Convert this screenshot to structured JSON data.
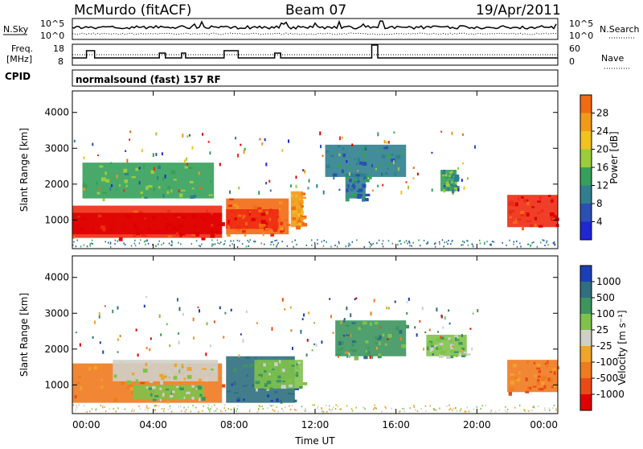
{
  "header": {
    "station": "McMurdo (fitACF)",
    "beam": "Beam 07",
    "date": "19/Apr/2011"
  },
  "top_panel": {
    "nsky_label": "N.Sky",
    "nsearch_label": "N.Search",
    "noise_ticks_left": [
      "10^5",
      "10^0"
    ],
    "noise_ticks_right": [
      "10^5",
      "10^0"
    ],
    "freq_label_line1": "Freq.",
    "freq_label_line2": "[MHz]",
    "freq_ticks": [
      "18",
      "8"
    ],
    "nave_label": "Nave",
    "nave_ticks": [
      "60",
      "0"
    ],
    "cpid_label": "CPID",
    "cpid_text": "normalsound (fast) 157 RF"
  },
  "colors": {
    "power_scale": [
      "#1f26d6",
      "#2a4fb5",
      "#2f7f8f",
      "#35a05a",
      "#9ccc3a",
      "#f2c21d",
      "#f29a17",
      "#f26a12",
      "#ee2a12",
      "#dd0000"
    ],
    "velocity_scale": [
      "#1b3fb8",
      "#2f6f7f",
      "#3c955f",
      "#7fc24a",
      "#cfcfc8",
      "#f1a32a",
      "#f07a1e",
      "#ea4b16",
      "#e10000"
    ]
  },
  "chart_data": [
    {
      "type": "heatmap",
      "name": "power",
      "ylabel": "Slant Range [km]",
      "yticks": [
        "1000",
        "2000",
        "3000",
        "4000"
      ],
      "ylim": [
        200,
        4600
      ],
      "colorbar_label": "Power [dB]",
      "colorbar_ticks": [
        "4",
        "8",
        "12",
        "16",
        "20",
        "24",
        "28"
      ],
      "clim": [
        0,
        32
      ],
      "blocks": [
        {
          "t0": 0.0,
          "t1": 7.4,
          "r0": 500,
          "r1": 1400,
          "level": 8
        },
        {
          "t0": 0.0,
          "t1": 7.4,
          "r0": 600,
          "r1": 1200,
          "level": 9
        },
        {
          "t0": 7.6,
          "t1": 10.7,
          "r0": 600,
          "r1": 1600,
          "level": 7
        },
        {
          "t0": 7.6,
          "t1": 10.2,
          "r0": 750,
          "r1": 1300,
          "level": 8
        },
        {
          "t0": 10.8,
          "t1": 11.4,
          "r0": 800,
          "r1": 1800,
          "level": 6
        },
        {
          "t0": 21.5,
          "t1": 24.0,
          "r0": 800,
          "r1": 1700,
          "level": 8
        },
        {
          "t0": 13.5,
          "t1": 14.5,
          "r0": 1600,
          "r1": 2300,
          "level": 2
        },
        {
          "t0": 18.2,
          "t1": 19.0,
          "r0": 1800,
          "r1": 2400,
          "level": 3
        },
        {
          "t0": 0.5,
          "t1": 7.0,
          "r0": 1600,
          "r1": 2600,
          "level": 3
        },
        {
          "t0": 12.5,
          "t1": 16.5,
          "r0": 2200,
          "r1": 3100,
          "level": 2
        }
      ]
    },
    {
      "type": "heatmap",
      "name": "velocity",
      "xlabel": "Time UT",
      "xticks": [
        "00:00",
        "04:00",
        "08:00",
        "12:00",
        "16:00",
        "20:00",
        "00:00"
      ],
      "xlim": [
        0,
        24
      ],
      "ylabel": "Slant Range [km]",
      "yticks": [
        "1000",
        "2000",
        "3000",
        "4000"
      ],
      "ylim": [
        200,
        4600
      ],
      "colorbar_label": "Velocity [m s⁻¹]",
      "colorbar_ticks": [
        "1000",
        "500",
        "100",
        "25",
        "-25",
        "-100",
        "-500",
        "-1000"
      ],
      "blocks": [
        {
          "t0": 0.0,
          "t1": 7.4,
          "r0": 500,
          "r1": 1600,
          "level": 6
        },
        {
          "t0": 2.0,
          "t1": 7.2,
          "r0": 1100,
          "r1": 1700,
          "level": 4
        },
        {
          "t0": 3.0,
          "t1": 6.5,
          "r0": 600,
          "r1": 1000,
          "level": 3
        },
        {
          "t0": 7.6,
          "t1": 11.0,
          "r0": 500,
          "r1": 1800,
          "level": 1
        },
        {
          "t0": 9.0,
          "t1": 11.4,
          "r0": 900,
          "r1": 1700,
          "level": 3
        },
        {
          "t0": 21.5,
          "t1": 24.0,
          "r0": 800,
          "r1": 1700,
          "level": 6
        },
        {
          "t0": 13.0,
          "t1": 16.5,
          "r0": 1800,
          "r1": 2800,
          "level": 2
        },
        {
          "t0": 17.5,
          "t1": 19.5,
          "r0": 1800,
          "r1": 2400,
          "level": 3
        }
      ]
    }
  ]
}
